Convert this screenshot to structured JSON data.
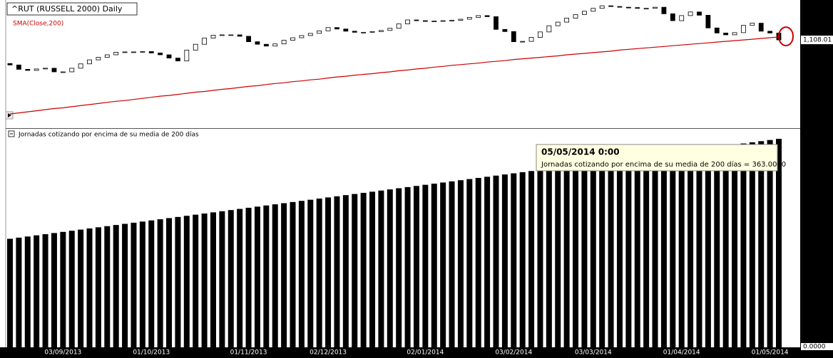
{
  "chart_data": [
    {
      "type": "candlestick",
      "title": "^RUT (RUSSELL 2000) Daily",
      "categories": [
        null,
        null,
        null,
        null,
        null,
        null,
        "03/09/2013",
        null,
        null,
        null,
        null,
        null,
        null,
        null,
        null,
        null,
        "01/10/2013",
        null,
        null,
        null,
        null,
        null,
        null,
        null,
        null,
        null,
        null,
        "01/11/2013",
        null,
        null,
        null,
        null,
        null,
        null,
        null,
        null,
        "02/12/2013",
        null,
        null,
        null,
        null,
        null,
        null,
        null,
        null,
        null,
        null,
        "02/01/2014",
        null,
        null,
        null,
        null,
        null,
        null,
        null,
        null,
        null,
        "03/02/2014",
        null,
        null,
        null,
        null,
        null,
        null,
        null,
        null,
        "03/03/2014",
        null,
        null,
        null,
        null,
        null,
        null,
        null,
        null,
        null,
        "01/04/2014",
        null,
        null,
        null,
        null,
        null,
        null,
        null,
        null,
        null,
        "01/05/2014",
        null
      ],
      "open": [
        1043,
        1039,
        1027,
        1024,
        1028,
        1030,
        1020,
        1020,
        1030,
        1042,
        1053,
        1060,
        1067,
        1074,
        1075,
        1075,
        1076,
        1072,
        1067,
        1058,
        1050,
        1080,
        1096,
        1113,
        1121,
        1122,
        1122,
        1118,
        1103,
        1096,
        1091,
        1097,
        1107,
        1114,
        1120,
        1126,
        1133,
        1142,
        1138,
        1132,
        1129,
        1129,
        1131,
        1134,
        1140,
        1152,
        1163,
        1161,
        1159,
        1160,
        1161,
        1162,
        1165,
        1170,
        1175,
        1172,
        1137,
        1131,
        1103,
        1104,
        1115,
        1130,
        1147,
        1157,
        1168,
        1178,
        1187,
        1195,
        1202,
        1200,
        1198,
        1197,
        1195,
        1195,
        1198,
        1180,
        1161,
        1175,
        1185,
        1176,
        1141,
        1127,
        1122,
        1128,
        1148,
        1154,
        1132,
        1127
      ],
      "close": [
        1039,
        1027,
        1024,
        1028,
        1030,
        1020,
        1020,
        1030,
        1042,
        1053,
        1060,
        1067,
        1074,
        1075,
        1075,
        1076,
        1072,
        1067,
        1058,
        1050,
        1080,
        1096,
        1113,
        1121,
        1122,
        1122,
        1118,
        1103,
        1096,
        1091,
        1097,
        1107,
        1114,
        1120,
        1126,
        1133,
        1142,
        1138,
        1132,
        1129,
        1129,
        1131,
        1134,
        1140,
        1152,
        1163,
        1161,
        1159,
        1160,
        1161,
        1162,
        1165,
        1170,
        1175,
        1172,
        1137,
        1131,
        1103,
        1104,
        1115,
        1130,
        1147,
        1157,
        1168,
        1178,
        1187,
        1195,
        1202,
        1200,
        1198,
        1197,
        1195,
        1195,
        1198,
        1180,
        1161,
        1175,
        1185,
        1176,
        1141,
        1127,
        1122,
        1128,
        1148,
        1154,
        1132,
        1127,
        1108.01
      ],
      "up_color": "#ffffff",
      "down_color": "#000000",
      "ylim": [
        869,
        1214
      ],
      "yticks": [
        {
          "value": 1108.01,
          "label": "1,108.01"
        }
      ],
      "series": [
        {
          "name": "SMA(Close,200)",
          "color": "#cc0000",
          "values": [
            904,
            907,
            910,
            913,
            916,
            919,
            921,
            924,
            927,
            930,
            933,
            936,
            939,
            941,
            944,
            947,
            950,
            953,
            955,
            958,
            961,
            964,
            966,
            969,
            972,
            974,
            977,
            980,
            982,
            985,
            988,
            990,
            993,
            995,
            998,
            1000,
            1003,
            1006,
            1008,
            1011,
            1013,
            1015,
            1018,
            1020,
            1023,
            1025,
            1028,
            1030,
            1033,
            1035,
            1038,
            1040,
            1042,
            1044,
            1047,
            1049,
            1051,
            1054,
            1056,
            1058,
            1060,
            1062,
            1064,
            1067,
            1069,
            1071,
            1073,
            1075,
            1077,
            1080,
            1082,
            1084,
            1086,
            1088,
            1090,
            1092,
            1094,
            1096,
            1098,
            1100,
            1102,
            1104,
            1106,
            1108,
            1110,
            1112,
            1114,
            1116
          ]
        }
      ]
    },
    {
      "type": "bar",
      "title": "Jornadas cotizando por encima de su media de 200 días",
      "values": [
        189,
        191,
        193,
        195,
        197,
        199,
        201,
        203,
        205,
        207,
        209,
        211,
        213,
        215,
        217,
        219,
        221,
        223,
        225,
        227,
        229,
        231,
        233,
        235,
        237,
        239,
        241,
        243,
        245,
        247,
        249,
        251,
        253,
        255,
        257,
        259,
        261,
        263,
        265,
        267,
        269,
        271,
        273,
        275,
        277,
        279,
        281,
        283,
        285,
        287,
        289,
        291,
        293,
        295,
        297,
        299,
        301,
        303,
        305,
        307,
        309,
        311,
        313,
        315,
        317,
        319,
        321,
        323,
        325,
        327,
        329,
        331,
        333,
        335,
        337,
        339,
        341,
        343,
        345,
        347,
        349,
        351,
        353,
        355,
        357,
        359,
        361,
        363
      ],
      "color": "#000000",
      "ylim": [
        0,
        378
      ],
      "yticks": [
        {
          "value": 0,
          "label": "0.0000"
        }
      ],
      "tooltip": {
        "title": "05/05/2014 0:00",
        "text": "Jornadas cotizando por encima de su media de 200 días = 363.0000"
      }
    }
  ]
}
